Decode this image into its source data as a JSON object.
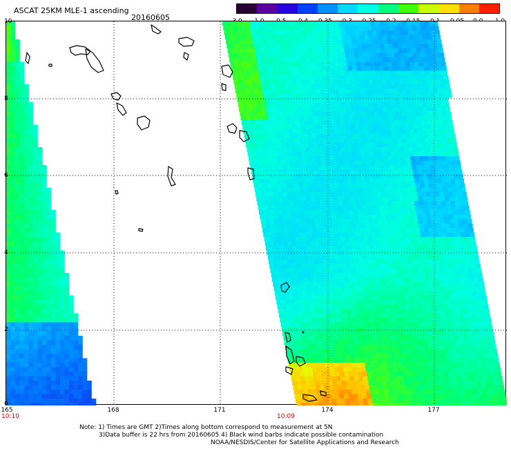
{
  "header": {
    "title": "ASCAT 25KM MLE-1 ascending",
    "date": "20160605"
  },
  "colorbar": {
    "labels": [
      "-3.0",
      "-1.0",
      "-0.5",
      "-0.4",
      "-0.35",
      "-0.3",
      "-0.25",
      "-0.2",
      "-0.15",
      "-0.1",
      "-0.05",
      "0.0",
      "1.0"
    ],
    "colors": [
      "#2a0033",
      "#5a00a0",
      "#2800e0",
      "#0040ff",
      "#0090ff",
      "#00d8ff",
      "#00ffe6",
      "#00ff80",
      "#40ff00",
      "#c8ff00",
      "#ffe000",
      "#ff8000",
      "#ff2000"
    ]
  },
  "map": {
    "y_axis_labels": [
      "10",
      "8",
      "6",
      "4",
      "2",
      "0"
    ],
    "x_axis_labels": [
      "165",
      "168",
      "171",
      "174",
      "177"
    ],
    "time_labels": [
      "10:10",
      "10:09"
    ]
  },
  "notes": [
    "Note: 1) Times are GMT 2)Times along bottom correspond to measurement at 5N",
    "3)Data buffer is 22 hrs from 20160605 4) Black wind barbs indicate possible contamination",
    "NOAA/NESDIS/Center for Satellite Applications and Research"
  ]
}
